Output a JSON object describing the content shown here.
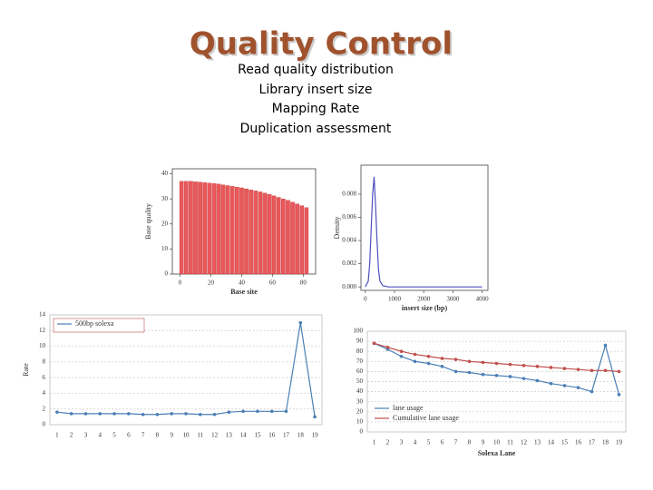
{
  "title": "Quality Control",
  "items": [
    "Read quality distribution",
    "Library insert size",
    "Mapping Rate",
    "Duplication assessment"
  ],
  "chart_data": [
    {
      "type": "bar",
      "xlabel": "Base site",
      "ylabel": "Base quality",
      "color": "#e8585a",
      "x": [
        1,
        4,
        7,
        10,
        13,
        16,
        19,
        22,
        25,
        28,
        31,
        34,
        37,
        40,
        43,
        46,
        49,
        52,
        55,
        58,
        61,
        64,
        67,
        70,
        73,
        76,
        79,
        82
      ],
      "values": [
        37,
        37,
        37,
        36.8,
        36.7,
        36.5,
        36.3,
        36.1,
        35.9,
        35.6,
        35.3,
        35,
        34.7,
        34.4,
        34,
        33.6,
        33.2,
        32.8,
        32.3,
        31.8,
        31.2,
        30.6,
        30,
        29.4,
        28.7,
        28,
        27.3,
        26.5
      ],
      "xlim": [
        -5,
        88
      ],
      "ylim": [
        0,
        42
      ],
      "xticks": [
        0,
        20,
        40,
        60,
        80
      ],
      "yticks": [
        0,
        10,
        20,
        30,
        40
      ]
    },
    {
      "type": "line",
      "xlabel": "insert size (bp)",
      "ylabel": "Density",
      "color": "#5050c0",
      "x": [
        0,
        100,
        150,
        200,
        250,
        300,
        350,
        400,
        450,
        500,
        600,
        800,
        1000,
        2000,
        3000,
        4000
      ],
      "values": [
        0,
        0.0005,
        0.002,
        0.005,
        0.008,
        0.0095,
        0.007,
        0.004,
        0.0015,
        0.0005,
        0.0001,
        0,
        0,
        0,
        0,
        0
      ],
      "xlim": [
        -150,
        4200
      ],
      "ylim": [
        -0.0003,
        0.0105
      ],
      "xticks": [
        0,
        1000,
        2000,
        3000,
        4000
      ],
      "yticks": [
        {
          "value": 0,
          "label": "0.000"
        },
        {
          "value": 0.002,
          "label": "0.002"
        },
        {
          "value": 0.004,
          "label": "0.004"
        },
        {
          "value": 0.006,
          "label": "0.006"
        },
        {
          "value": 0.008,
          "label": "0.008"
        }
      ]
    },
    {
      "type": "line",
      "ylabel": "Rate",
      "grid": true,
      "categories": [
        "1",
        "2",
        "3",
        "4",
        "5",
        "6",
        "7",
        "8",
        "9",
        "10",
        "11",
        "12",
        "13",
        "14",
        "15",
        "16",
        "17",
        "18",
        "19"
      ],
      "series": [
        {
          "name": "500bp solexa",
          "color": "#4a7fb5",
          "values": [
            1.6,
            1.4,
            1.4,
            1.4,
            1.4,
            1.4,
            1.3,
            1.3,
            1.4,
            1.4,
            1.3,
            1.3,
            1.6,
            1.7,
            1.7,
            1.7,
            1.7,
            13,
            1
          ]
        }
      ],
      "ylim": [
        0,
        14
      ],
      "yticks": [
        0,
        2,
        4,
        6,
        8,
        10,
        12,
        14
      ]
    },
    {
      "type": "line",
      "xlabel": "Solexa Lane",
      "grid": true,
      "categories": [
        "1",
        "2",
        "3",
        "4",
        "5",
        "6",
        "7",
        "8",
        "9",
        "10",
        "11",
        "12",
        "13",
        "14",
        "15",
        "16",
        "17",
        "18",
        "19"
      ],
      "series": [
        {
          "name": "lane usage",
          "color": "#4a7fb5",
          "values": [
            88,
            82,
            75,
            70,
            68,
            65,
            60,
            59,
            57,
            56,
            55,
            53,
            51,
            48,
            46,
            44,
            40,
            86,
            37
          ]
        },
        {
          "name": "Cumulative lane usage",
          "color": "#c0504d",
          "values": [
            88,
            84,
            80,
            77,
            75,
            73,
            72,
            70,
            69,
            68,
            67,
            66,
            65,
            64,
            63,
            62,
            61,
            61,
            60
          ]
        }
      ],
      "ylim": [
        0,
        100
      ],
      "yticks": [
        0,
        10,
        20,
        30,
        40,
        50,
        60,
        70,
        80,
        90,
        100
      ]
    }
  ]
}
